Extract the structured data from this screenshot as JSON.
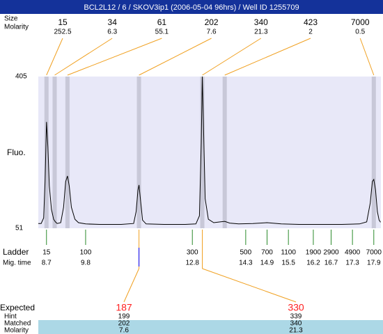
{
  "header": {
    "title": "BCL2L12 / 6 / SKOV3ip1 (2006-05-04 96hrs) / Well ID 1255709"
  },
  "chart_data": {
    "type": "line",
    "y_label": "Fluo.",
    "ylim": [
      51,
      405
    ],
    "yticks": [
      51,
      405
    ],
    "xlim": [
      8.47,
      18.1
    ],
    "color": "#000000",
    "x": [
      8.47,
      8.55,
      8.62,
      8.66,
      8.7,
      8.74,
      8.78,
      8.84,
      8.9,
      8.95,
      9.0,
      9.1,
      9.18,
      9.24,
      9.29,
      9.34,
      9.4,
      9.5,
      9.6,
      9.8,
      10.2,
      10.8,
      11.15,
      11.22,
      11.27,
      11.3,
      11.34,
      11.4,
      11.5,
      12.0,
      12.6,
      12.9,
      13.0,
      13.05,
      13.08,
      13.11,
      13.16,
      13.25,
      13.4,
      13.6,
      13.71,
      13.85,
      14.1,
      14.5,
      14.9,
      15.3,
      15.8,
      16.4,
      17.0,
      17.5,
      17.7,
      17.8,
      17.86,
      17.9,
      17.95,
      18.0,
      18.05,
      18.09
    ],
    "values": [
      62,
      62,
      75,
      160,
      299,
      240,
      150,
      95,
      72,
      66,
      62,
      64,
      100,
      160,
      173,
      150,
      100,
      72,
      64,
      61,
      60,
      60,
      62,
      90,
      140,
      152,
      120,
      70,
      61,
      60,
      60,
      61,
      80,
      250,
      405,
      300,
      120,
      72,
      64,
      66,
      67,
      63,
      61,
      62,
      64,
      61,
      60,
      60,
      60,
      61,
      66,
      110,
      160,
      165,
      140,
      90,
      70,
      65
    ],
    "peaks": {
      "size_label": "Size",
      "molarity_label": "Molarity",
      "sizes": [
        15,
        34,
        61,
        202,
        340,
        423,
        7000
      ],
      "molarity": [
        252.5,
        6.3,
        55.1,
        7.6,
        21.3,
        2,
        0.5
      ],
      "mig_time": [
        8.7,
        8.93,
        9.29,
        11.3,
        13.08,
        13.71,
        17.9
      ]
    },
    "ladder": {
      "label": "Ladder",
      "time_label": "Mig. time",
      "sizes": [
        15,
        100,
        300,
        500,
        700,
        1100,
        1900,
        2900,
        4900,
        7000
      ],
      "times": [
        8.7,
        9.8,
        12.8,
        14.3,
        14.9,
        15.5,
        16.2,
        16.7,
        17.3,
        17.9
      ]
    },
    "table": {
      "labels": [
        "Expected",
        "Hint",
        "Matched",
        "Molarity"
      ],
      "expected": [
        187,
        330
      ],
      "hint": [
        199,
        339
      ],
      "matched": [
        202,
        340
      ],
      "molarity": [
        7.6,
        21.3
      ]
    }
  }
}
